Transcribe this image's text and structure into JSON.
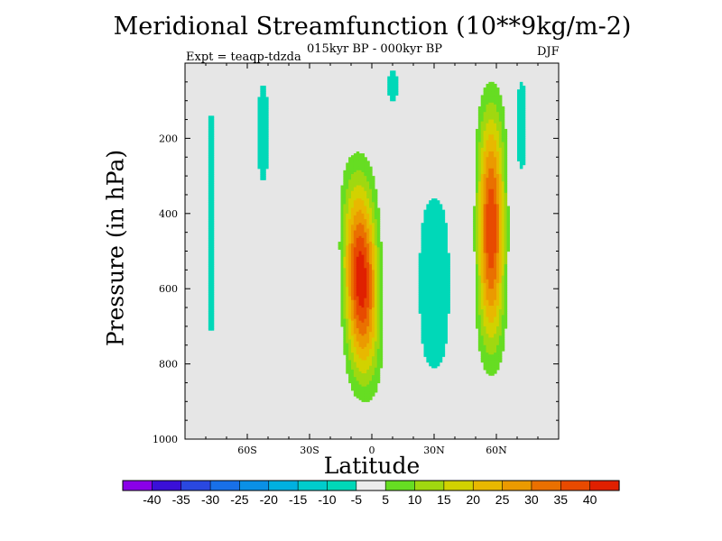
{
  "chart_data": {
    "type": "heatmap",
    "title": "Meridional Streamfunction (10**9kg/m-2)",
    "subtitle": "015kyr BP - 000kyr BP",
    "season": "DJF",
    "experiment": "Expt = teaqp-tdzda",
    "xlabel": "Latitude",
    "ylabel": "Pressure (in hPa)",
    "xlim": [
      -90,
      90
    ],
    "ylim": [
      1000,
      0
    ],
    "x_ticks": [
      {
        "value": -60,
        "label": "60S"
      },
      {
        "value": -30,
        "label": "30S"
      },
      {
        "value": 0,
        "label": "0"
      },
      {
        "value": 30,
        "label": "30N"
      },
      {
        "value": 60,
        "label": "60N"
      }
    ],
    "y_ticks": [
      {
        "value": 200,
        "label": "200"
      },
      {
        "value": 400,
        "label": "400"
      },
      {
        "value": 600,
        "label": "600"
      },
      {
        "value": 800,
        "label": "800"
      },
      {
        "value": 1000,
        "label": "1000"
      }
    ],
    "colorbar": {
      "levels": [
        -40,
        -35,
        -30,
        -25,
        -20,
        -15,
        -10,
        -5,
        5,
        10,
        15,
        20,
        25,
        30,
        35,
        40
      ],
      "colors": [
        "#8a00e8",
        "#3a10d8",
        "#2a48e0",
        "#1870e8",
        "#0a90e6",
        "#00b0e0",
        "#00cccc",
        "#00d8b8",
        "#ececec",
        "#66dd22",
        "#a0d810",
        "#d2d200",
        "#e8b800",
        "#eb9a00",
        "#ea7000",
        "#e84a00",
        "#e02000"
      ]
    },
    "background_color": "#e6e6e6",
    "features": [
      {
        "name": "southern-equatorial-cell",
        "lat": [
          -18,
          8
        ],
        "pressure": [
          130,
          990
        ],
        "peak": 45
      },
      {
        "name": "northern-midlatitude-cell",
        "lat": [
          47,
          68
        ],
        "pressure": [
          0,
          940
        ],
        "peak": 40
      },
      {
        "name": "weak-negative-column-70S",
        "lat": [
          -80,
          -75
        ],
        "pressure": [
          0,
          850
        ],
        "peak": -7
      },
      {
        "name": "weak-negative-column-55S",
        "lat": [
          -56,
          -49
        ],
        "pressure": [
          0,
          370
        ],
        "peak": -7
      },
      {
        "name": "weak-negative-column-10N",
        "lat": [
          7,
          13
        ],
        "pressure": [
          0,
          120
        ],
        "peak": -7
      },
      {
        "name": "weak-negative-region-30N",
        "lat": [
          20,
          40
        ],
        "pressure": [
          270,
          900
        ],
        "peak": -8
      },
      {
        "name": "weak-negative-column-72N",
        "lat": [
          69,
          75
        ],
        "pressure": [
          0,
          330
        ],
        "peak": -7
      }
    ]
  }
}
